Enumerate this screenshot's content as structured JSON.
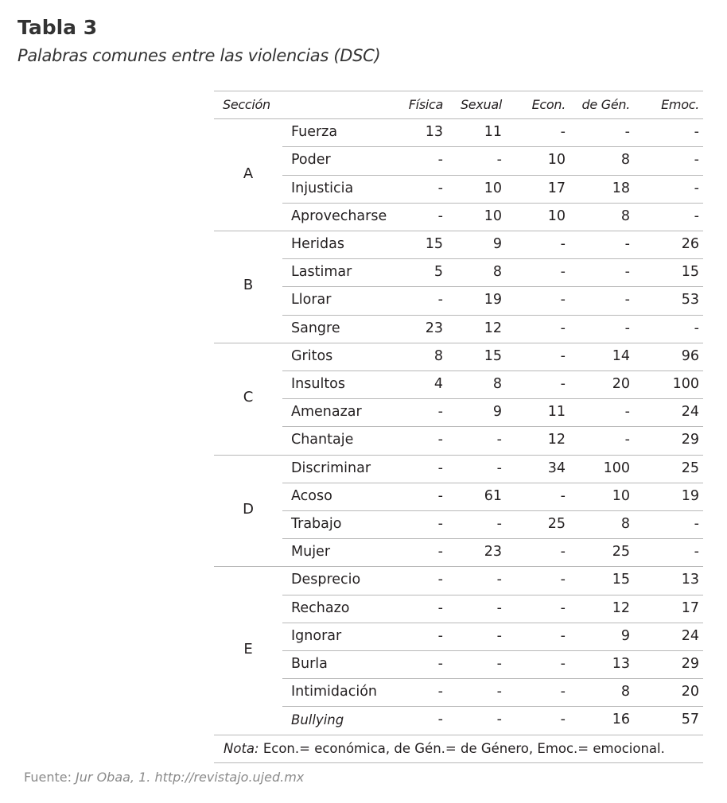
{
  "title": "Tabla 3",
  "subtitle": "Palabras comunes entre las violencias (DSC)",
  "table": {
    "headers": [
      "Sección",
      "",
      "Física",
      "Sexual",
      "Econ.",
      "de Gén.",
      "Emoc."
    ],
    "sections": [
      {
        "label": "A",
        "rows": [
          {
            "word": "Fuerza",
            "values": [
              "13",
              "11",
              "-",
              "-",
              "-"
            ]
          },
          {
            "word": "Poder",
            "values": [
              "-",
              "-",
              "10",
              "8",
              "-"
            ]
          },
          {
            "word": "Injusticia",
            "values": [
              "-",
              "10",
              "17",
              "18",
              "-"
            ]
          },
          {
            "word": "Aprovecharse",
            "values": [
              "-",
              "10",
              "10",
              "8",
              "-"
            ]
          }
        ]
      },
      {
        "label": "B",
        "rows": [
          {
            "word": "Heridas",
            "values": [
              "15",
              "9",
              "-",
              "-",
              "26"
            ]
          },
          {
            "word": "Lastimar",
            "values": [
              "5",
              "8",
              "-",
              "-",
              "15"
            ]
          },
          {
            "word": "Llorar",
            "values": [
              "-",
              "19",
              "-",
              "-",
              "53"
            ]
          },
          {
            "word": "Sangre",
            "values": [
              "23",
              "12",
              "-",
              "-",
              "-"
            ]
          }
        ]
      },
      {
        "label": "C",
        "rows": [
          {
            "word": "Gritos",
            "values": [
              "8",
              "15",
              "-",
              "14",
              "96"
            ]
          },
          {
            "word": "Insultos",
            "values": [
              "4",
              "8",
              "-",
              "20",
              "100"
            ]
          },
          {
            "word": "Amenazar",
            "values": [
              "-",
              "9",
              "11",
              "-",
              "24"
            ]
          },
          {
            "word": "Chantaje",
            "values": [
              "-",
              "-",
              "12",
              "-",
              "29"
            ]
          }
        ]
      },
      {
        "label": "D",
        "rows": [
          {
            "word": "Discriminar",
            "values": [
              "-",
              "-",
              "34",
              "100",
              "25"
            ]
          },
          {
            "word": "Acoso",
            "values": [
              "-",
              "61",
              "-",
              "10",
              "19"
            ]
          },
          {
            "word": "Trabajo",
            "values": [
              "-",
              "-",
              "25",
              "8",
              "-"
            ]
          },
          {
            "word": "Mujer",
            "values": [
              "-",
              "23",
              "-",
              "25",
              "-"
            ]
          }
        ]
      },
      {
        "label": "E",
        "rows": [
          {
            "word": "Desprecio",
            "values": [
              "-",
              "-",
              "-",
              "15",
              "13"
            ]
          },
          {
            "word": "Rechazo",
            "values": [
              "-",
              "-",
              "-",
              "12",
              "17"
            ]
          },
          {
            "word": "Ignorar",
            "values": [
              "-",
              "-",
              "-",
              "9",
              "24"
            ]
          },
          {
            "word": "Burla",
            "values": [
              "-",
              "-",
              "-",
              "13",
              "29"
            ]
          },
          {
            "word": "Intimidación",
            "values": [
              "-",
              "-",
              "-",
              "8",
              "20"
            ]
          },
          {
            "word": "Bullying",
            "italic": true,
            "values": [
              "-",
              "-",
              "-",
              "16",
              "57"
            ]
          }
        ]
      }
    ],
    "note_label": "Nota:",
    "note_text": " Econ.= económica, de Gén.= de Género, Emoc.= emocional."
  },
  "source_label": "Fuente: ",
  "source_text": "Jur Obaa, 1. http://revistajo.ujed.mx"
}
